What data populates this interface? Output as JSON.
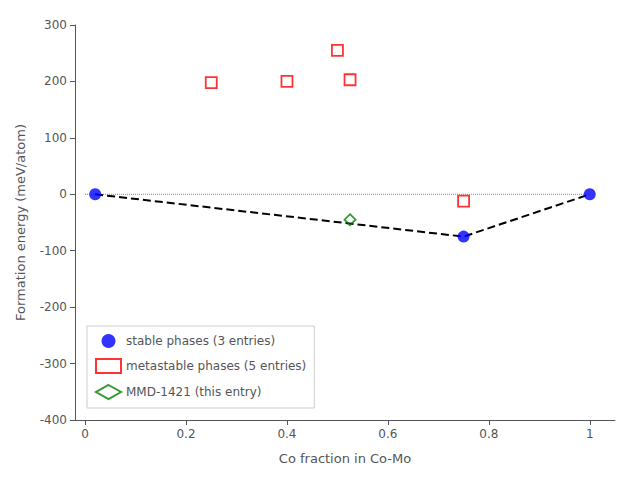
{
  "chart_data": {
    "type": "scatter",
    "xlabel": "Co fraction in Co-Mo",
    "ylabel": "Formation energy (meV/atom)",
    "xlim": [
      -0.02,
      1.05
    ],
    "ylim": [
      -400,
      300
    ],
    "xticks": [
      0,
      0.2,
      0.4,
      0.6,
      0.8,
      1
    ],
    "yticks": [
      -400,
      -300,
      -200,
      -100,
      0,
      100,
      200,
      300
    ],
    "grid": false,
    "legend": "lower left",
    "series": [
      {
        "type": "line",
        "line_style": "dotted",
        "color": "gray",
        "x": [
          0.0,
          1.0
        ],
        "values": [
          0.0,
          0.0
        ]
      },
      {
        "type": "line",
        "line_style": "dashed",
        "color": "black",
        "x": [
          0.02,
          0.75,
          1.0
        ],
        "values": [
          0.0,
          -75.0,
          0.0
        ]
      },
      {
        "name": "stable phases (3 entries)",
        "type": "scatter",
        "marker": "circle",
        "color": "blue",
        "x": [
          0.02,
          0.75,
          1.0
        ],
        "values": [
          0.0,
          -75.0,
          0.0
        ]
      },
      {
        "name": "metastable phases (5 entries)",
        "type": "scatter",
        "marker": "square-open",
        "color": "red",
        "x": [
          0.25,
          0.4,
          0.5,
          0.525,
          0.75
        ],
        "values": [
          198.0,
          200.0,
          255.0,
          203.0,
          -12.0
        ]
      },
      {
        "name": "MMD-1421 (this entry)",
        "type": "scatter",
        "marker": "diamond-open",
        "color": "green",
        "x": [
          0.525
        ],
        "values": [
          -45.0
        ]
      }
    ]
  }
}
